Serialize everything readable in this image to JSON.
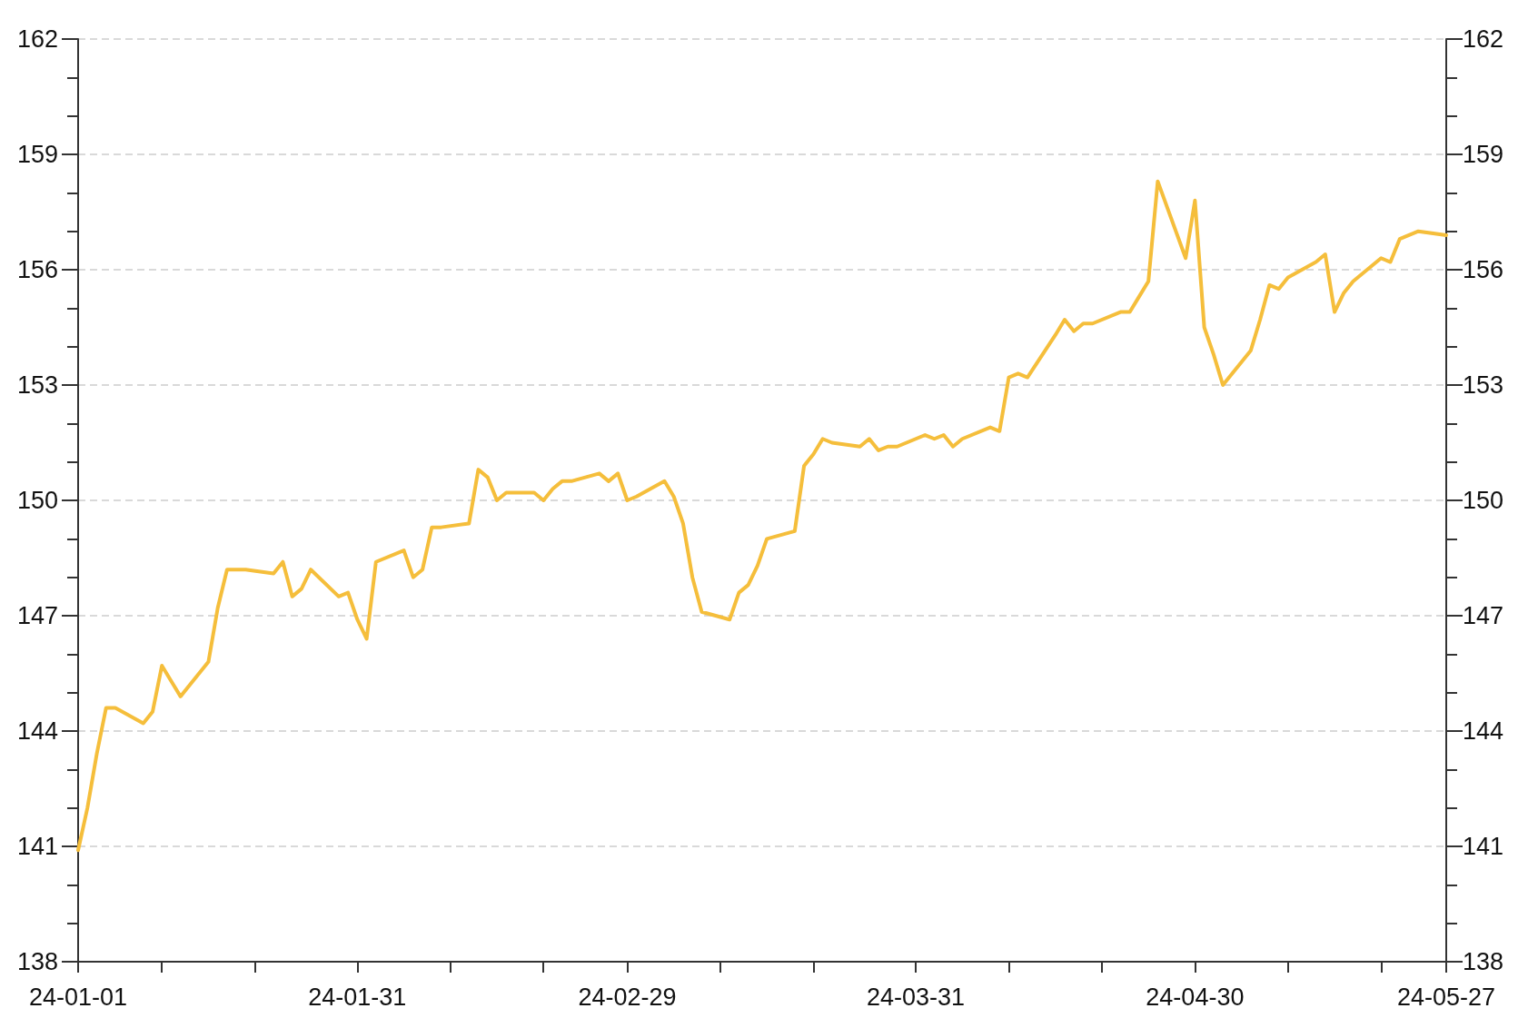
{
  "chart_data": {
    "type": "line",
    "color": "#f5be3b",
    "marker": "none",
    "line_style": "solid",
    "grid": "y",
    "x": [
      "--01-01",
      "--01-02",
      "--01-03",
      "--01-04",
      "--01-05",
      "--01-08",
      "--01-09",
      "--01-10",
      "--01-11",
      "--01-12",
      "--01-15",
      "--01-16",
      "--01-17",
      "--01-18",
      "--01-19",
      "--01-22",
      "--01-23",
      "--01-24",
      "--01-25",
      "--01-26",
      "--01-29",
      "--01-30",
      "--01-31",
      "--02-01",
      "--02-02",
      "--02-05",
      "--02-06",
      "--02-07",
      "--02-08",
      "--02-09",
      "--02-12",
      "--02-13",
      "--02-14",
      "--02-15",
      "--02-16",
      "--02-19",
      "--02-20",
      "--02-21",
      "--02-22",
      "--02-23",
      "--02-26",
      "--02-27",
      "--02-28",
      "--02-29",
      "--03-01",
      "--03-04",
      "--03-05",
      "--03-06",
      "--03-07",
      "--03-08",
      "--03-11",
      "--03-12",
      "--03-13",
      "--03-14",
      "--03-15",
      "--03-18",
      "--03-19",
      "--03-20",
      "--03-21",
      "--03-22",
      "--03-25",
      "--03-26",
      "--03-27",
      "--03-28",
      "--03-29",
      "--04-01",
      "--04-02",
      "--04-03",
      "--04-04",
      "--04-05",
      "--04-08",
      "--04-09",
      "--04-10",
      "--04-11",
      "--04-12",
      "--04-15",
      "--04-16",
      "--04-17",
      "--04-18",
      "--04-19",
      "--04-22",
      "--04-23",
      "--04-24",
      "--04-25",
      "--04-26",
      "--04-29",
      "--04-30",
      "--05-01",
      "--05-02",
      "--05-03",
      "--05-06",
      "--05-07",
      "--05-08",
      "--05-09",
      "--05-10",
      "--05-13",
      "--05-14",
      "--05-15",
      "--05-16",
      "--05-17",
      "--05-20",
      "--05-21",
      "--05-22",
      "--05-23",
      "--05-24",
      "--05-27"
    ],
    "values": [
      140.9,
      142.0,
      143.4,
      144.6,
      144.6,
      144.2,
      144.5,
      145.7,
      145.3,
      144.9,
      145.8,
      147.2,
      148.2,
      148.2,
      148.2,
      148.1,
      148.4,
      147.5,
      147.7,
      148.2,
      147.5,
      147.6,
      146.9,
      146.4,
      148.4,
      148.7,
      148.0,
      148.2,
      149.3,
      149.3,
      149.4,
      150.8,
      150.6,
      150.0,
      150.2,
      150.2,
      150.0,
      150.3,
      150.5,
      150.5,
      150.7,
      150.5,
      150.7,
      150.0,
      150.1,
      150.5,
      150.1,
      149.4,
      148.0,
      147.1,
      146.9,
      147.6,
      147.8,
      148.3,
      149.0,
      149.2,
      150.9,
      151.2,
      151.6,
      151.5,
      151.4,
      151.6,
      151.3,
      151.4,
      151.4,
      151.7,
      151.6,
      151.7,
      151.4,
      151.6,
      151.9,
      151.8,
      153.2,
      153.3,
      153.2,
      154.3,
      154.7,
      154.4,
      154.6,
      154.6,
      154.9,
      154.9,
      155.3,
      155.7,
      158.3,
      156.3,
      157.8,
      154.5,
      153.8,
      153.0,
      153.9,
      154.7,
      155.6,
      155.5,
      155.8,
      156.2,
      156.4,
      154.9,
      155.4,
      155.7,
      156.3,
      156.2,
      156.8,
      156.9,
      157.0,
      156.9
    ],
    "xlim": [
      "--01-01",
      "--05-27"
    ],
    "xticks": [
      {
        "value": "--01-01",
        "label": "24-01-01"
      },
      {
        "value": "--01-10",
        "label": null
      },
      {
        "value": "--01-20",
        "label": null
      },
      {
        "value": "--01-31",
        "label": "24-01-31"
      },
      {
        "value": "--02-10",
        "label": null
      },
      {
        "value": "--02-20",
        "label": null
      },
      {
        "value": "--02-29",
        "label": "24-02-29"
      },
      {
        "value": "--03-10",
        "label": null
      },
      {
        "value": "--03-20",
        "label": null
      },
      {
        "value": "--03-31",
        "label": "24-03-31"
      },
      {
        "value": "--04-10",
        "label": null
      },
      {
        "value": "--04-20",
        "label": null
      },
      {
        "value": "--04-30",
        "label": "24-04-30"
      },
      {
        "value": "--05-10",
        "label": null
      },
      {
        "value": "--05-20",
        "label": null
      },
      {
        "value": "--05-27",
        "label": "24-05-27"
      }
    ],
    "ylim": [
      138,
      162
    ],
    "yticks": [
      138,
      {
        "value": 139,
        "label": null
      },
      {
        "value": 140,
        "label": null
      },
      141,
      {
        "value": 142,
        "label": null
      },
      {
        "value": 143,
        "label": null
      },
      144,
      {
        "value": 145,
        "label": null
      },
      {
        "value": 146,
        "label": null
      },
      147,
      {
        "value": 148,
        "label": null
      },
      {
        "value": 149,
        "label": null
      },
      150,
      {
        "value": 151,
        "label": null
      },
      {
        "value": 152,
        "label": null
      },
      153,
      {
        "value": 154,
        "label": null
      },
      {
        "value": 155,
        "label": null
      },
      156,
      {
        "value": 157,
        "label": null
      },
      {
        "value": 158,
        "label": null
      },
      159,
      {
        "value": 160,
        "label": null
      },
      {
        "value": 161,
        "label": null
      },
      162
    ],
    "y2lim": [
      138,
      162
    ],
    "y2ticks": [
      138,
      {
        "value": 139,
        "label": null
      },
      {
        "value": 140,
        "label": null
      },
      141,
      {
        "value": 142,
        "label": null
      },
      {
        "value": 143,
        "label": null
      },
      144,
      {
        "value": 145,
        "label": null
      },
      {
        "value": 146,
        "label": null
      },
      147,
      {
        "value": 148,
        "label": null
      },
      {
        "value": 149,
        "label": null
      },
      150,
      {
        "value": 151,
        "label": null
      },
      {
        "value": 152,
        "label": null
      },
      153,
      {
        "value": 154,
        "label": null
      },
      {
        "value": 155,
        "label": null
      },
      156,
      {
        "value": 157,
        "label": null
      },
      {
        "value": 158,
        "label": null
      },
      159,
      {
        "value": 160,
        "label": null
      },
      {
        "value": 161,
        "label": null
      },
      162
    ]
  }
}
